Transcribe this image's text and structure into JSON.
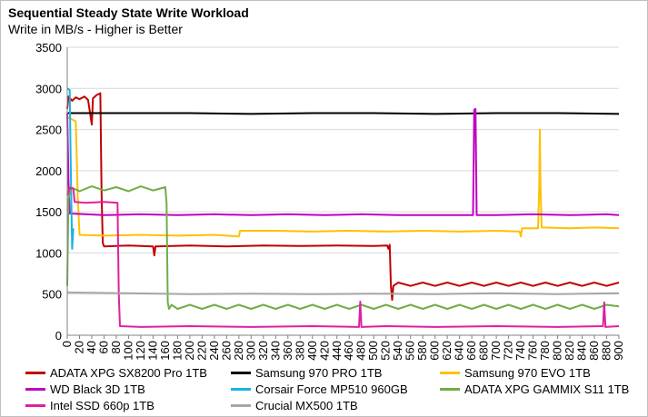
{
  "chart_data": {
    "type": "line",
    "title": "Sequential Steady State Write Workload",
    "subtitle": "Write in MB/s - Higher is Better",
    "xlim": [
      0,
      900
    ],
    "ylim": [
      0,
      3500
    ],
    "x_ticks": [
      "0",
      "20",
      "40",
      "60",
      "80",
      "100",
      "120",
      "140",
      "160",
      "180",
      "200",
      "220",
      "240",
      "260",
      "280",
      "300",
      "320",
      "340",
      "360",
      "380",
      "400",
      "420",
      "440",
      "460",
      "480",
      "500",
      "520",
      "540",
      "560",
      "580",
      "600",
      "620",
      "640",
      "660",
      "680",
      "700",
      "720",
      "740",
      "760",
      "780",
      "800",
      "820",
      "840",
      "860",
      "880",
      "900"
    ],
    "y_ticks": [
      "0",
      "500",
      "1000",
      "1500",
      "2000",
      "2500",
      "3000",
      "3500"
    ],
    "grid": "horizontal",
    "legend_position": "bottom",
    "series": [
      {
        "name": "ADATA XPG SX8200 Pro 1TB",
        "color": "#c00000",
        "points": [
          [
            0,
            2750
          ],
          [
            2,
            2900
          ],
          [
            8,
            2850
          ],
          [
            14,
            2890
          ],
          [
            20,
            2870
          ],
          [
            28,
            2900
          ],
          [
            34,
            2860
          ],
          [
            40,
            2560
          ],
          [
            42,
            2880
          ],
          [
            48,
            2920
          ],
          [
            54,
            2940
          ],
          [
            56,
            1700
          ],
          [
            58,
            1120
          ],
          [
            60,
            1080
          ],
          [
            100,
            1090
          ],
          [
            140,
            1080
          ],
          [
            142,
            970
          ],
          [
            144,
            1080
          ],
          [
            200,
            1090
          ],
          [
            260,
            1080
          ],
          [
            320,
            1090
          ],
          [
            380,
            1085
          ],
          [
            440,
            1090
          ],
          [
            500,
            1085
          ],
          [
            522,
            1090
          ],
          [
            524,
            1050
          ],
          [
            526,
            1100
          ],
          [
            528,
            600
          ],
          [
            530,
            430
          ],
          [
            532,
            600
          ],
          [
            540,
            640
          ],
          [
            560,
            600
          ],
          [
            580,
            640
          ],
          [
            600,
            600
          ],
          [
            620,
            640
          ],
          [
            640,
            600
          ],
          [
            660,
            640
          ],
          [
            680,
            600
          ],
          [
            700,
            640
          ],
          [
            720,
            600
          ],
          [
            740,
            640
          ],
          [
            760,
            600
          ],
          [
            780,
            640
          ],
          [
            800,
            600
          ],
          [
            820,
            640
          ],
          [
            840,
            600
          ],
          [
            860,
            640
          ],
          [
            880,
            600
          ],
          [
            900,
            640
          ]
        ]
      },
      {
        "name": "Samsung 970 PRO 1TB",
        "color": "#000000",
        "points": [
          [
            0,
            2700
          ],
          [
            100,
            2700
          ],
          [
            200,
            2700
          ],
          [
            300,
            2690
          ],
          [
            400,
            2700
          ],
          [
            500,
            2700
          ],
          [
            600,
            2690
          ],
          [
            700,
            2700
          ],
          [
            800,
            2700
          ],
          [
            900,
            2690
          ]
        ]
      },
      {
        "name": "Samsung 970 EVO 1TB",
        "color": "#ffc000",
        "points": [
          [
            0,
            2650
          ],
          [
            14,
            2600
          ],
          [
            17,
            1700
          ],
          [
            20,
            1220
          ],
          [
            60,
            1210
          ],
          [
            120,
            1220
          ],
          [
            180,
            1210
          ],
          [
            240,
            1220
          ],
          [
            280,
            1200
          ],
          [
            282,
            1270
          ],
          [
            340,
            1270
          ],
          [
            400,
            1260
          ],
          [
            460,
            1270
          ],
          [
            520,
            1260
          ],
          [
            580,
            1270
          ],
          [
            640,
            1260
          ],
          [
            700,
            1270
          ],
          [
            738,
            1260
          ],
          [
            740,
            1200
          ],
          [
            742,
            1300
          ],
          [
            768,
            1300
          ],
          [
            770,
            1800
          ],
          [
            771,
            2500
          ],
          [
            772,
            1800
          ],
          [
            774,
            1310
          ],
          [
            820,
            1300
          ],
          [
            860,
            1310
          ],
          [
            900,
            1300
          ]
        ]
      },
      {
        "name": "WD Black 3D 1TB",
        "color": "#c000c0",
        "points": [
          [
            0,
            2700
          ],
          [
            2,
            1900
          ],
          [
            4,
            1480
          ],
          [
            60,
            1460
          ],
          [
            120,
            1470
          ],
          [
            180,
            1460
          ],
          [
            240,
            1470
          ],
          [
            300,
            1460
          ],
          [
            360,
            1470
          ],
          [
            420,
            1460
          ],
          [
            480,
            1470
          ],
          [
            540,
            1460
          ],
          [
            662,
            1460
          ],
          [
            664,
            2740
          ],
          [
            666,
            2750
          ],
          [
            668,
            1460
          ],
          [
            700,
            1460
          ],
          [
            760,
            1470
          ],
          [
            820,
            1460
          ],
          [
            880,
            1470
          ],
          [
            900,
            1460
          ]
        ]
      },
      {
        "name": "Corsair Force MP510 960GB",
        "color": "#17b4e6",
        "points": [
          [
            0,
            3000
          ],
          [
            4,
            2980
          ],
          [
            6,
            1950
          ],
          [
            8,
            1050
          ],
          [
            10,
            1300
          ]
        ]
      },
      {
        "name": "ADATA XPG GAMMIX S11 1TB",
        "color": "#70ad47",
        "points": [
          [
            0,
            600
          ],
          [
            2,
            1650
          ],
          [
            6,
            1800
          ],
          [
            20,
            1750
          ],
          [
            40,
            1810
          ],
          [
            60,
            1760
          ],
          [
            80,
            1800
          ],
          [
            100,
            1750
          ],
          [
            120,
            1810
          ],
          [
            140,
            1760
          ],
          [
            160,
            1800
          ],
          [
            162,
            1600
          ],
          [
            164,
            400
          ],
          [
            166,
            320
          ],
          [
            170,
            370
          ],
          [
            180,
            320
          ],
          [
            200,
            370
          ],
          [
            220,
            320
          ],
          [
            240,
            370
          ],
          [
            260,
            320
          ],
          [
            280,
            370
          ],
          [
            300,
            320
          ],
          [
            320,
            370
          ],
          [
            340,
            320
          ],
          [
            360,
            370
          ],
          [
            380,
            320
          ],
          [
            400,
            370
          ],
          [
            420,
            320
          ],
          [
            440,
            370
          ],
          [
            460,
            320
          ],
          [
            480,
            370
          ],
          [
            500,
            320
          ],
          [
            520,
            370
          ],
          [
            540,
            320
          ],
          [
            560,
            370
          ],
          [
            580,
            320
          ],
          [
            600,
            370
          ],
          [
            620,
            320
          ],
          [
            640,
            370
          ],
          [
            660,
            320
          ],
          [
            680,
            370
          ],
          [
            700,
            320
          ],
          [
            720,
            370
          ],
          [
            740,
            320
          ],
          [
            760,
            370
          ],
          [
            780,
            320
          ],
          [
            800,
            370
          ],
          [
            820,
            320
          ],
          [
            840,
            370
          ],
          [
            860,
            320
          ],
          [
            880,
            370
          ],
          [
            900,
            350
          ]
        ]
      },
      {
        "name": "Intel SSD 660p 1TB",
        "color": "#e020a0",
        "points": [
          [
            0,
            1700
          ],
          [
            4,
            1790
          ],
          [
            10,
            1780
          ],
          [
            12,
            1620
          ],
          [
            30,
            1610
          ],
          [
            60,
            1620
          ],
          [
            82,
            1610
          ],
          [
            84,
            500
          ],
          [
            86,
            110
          ],
          [
            120,
            100
          ],
          [
            200,
            110
          ],
          [
            300,
            100
          ],
          [
            400,
            110
          ],
          [
            476,
            100
          ],
          [
            478,
            410
          ],
          [
            480,
            100
          ],
          [
            520,
            110
          ],
          [
            600,
            100
          ],
          [
            700,
            110
          ],
          [
            800,
            100
          ],
          [
            874,
            110
          ],
          [
            876,
            400
          ],
          [
            878,
            100
          ],
          [
            900,
            110
          ]
        ]
      },
      {
        "name": "Crucial MX500 1TB",
        "color": "#a6a6a6",
        "points": [
          [
            0,
            520
          ],
          [
            100,
            510
          ],
          [
            200,
            500
          ],
          [
            300,
            505
          ],
          [
            400,
            500
          ],
          [
            500,
            505
          ],
          [
            600,
            500
          ],
          [
            700,
            510
          ],
          [
            800,
            500
          ],
          [
            900,
            510
          ]
        ]
      }
    ]
  }
}
